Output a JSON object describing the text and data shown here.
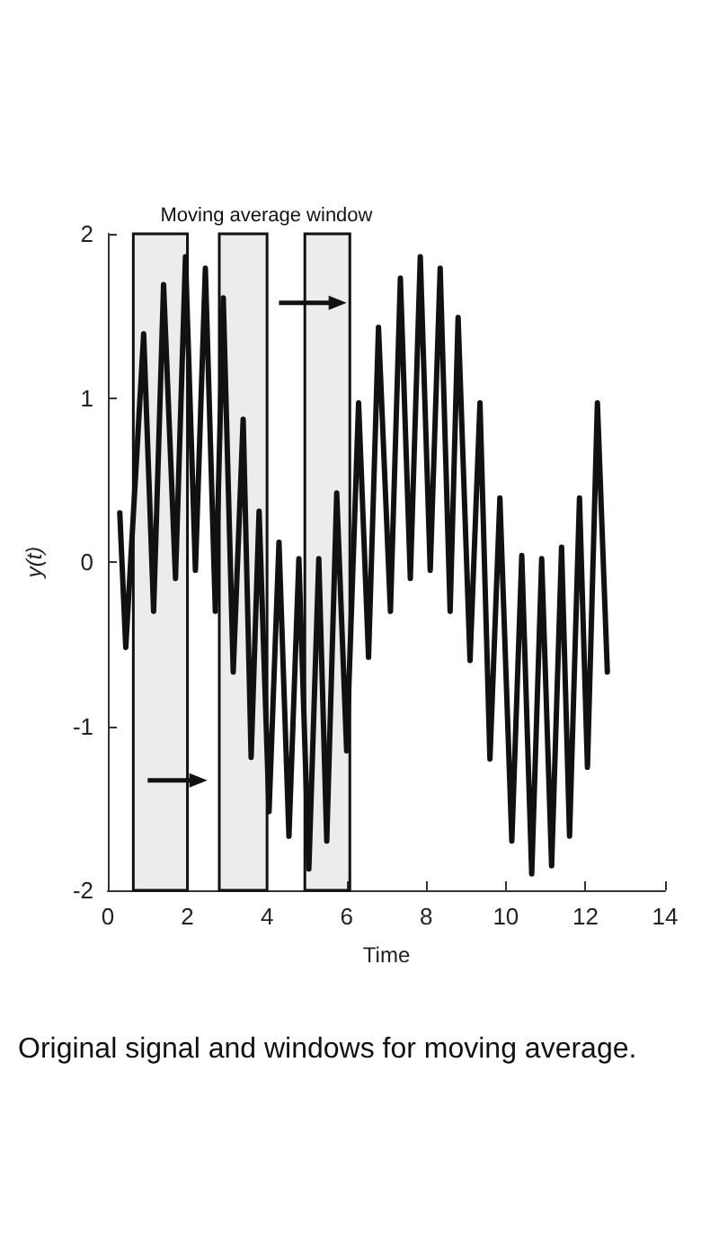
{
  "chart_data": {
    "type": "line",
    "xlabel": "Time",
    "ylabel": "y(t)",
    "x": [
      0.3,
      0.45,
      0.9,
      1.15,
      1.4,
      1.7,
      1.95,
      2.2,
      2.45,
      2.7,
      2.9,
      3.15,
      3.4,
      3.6,
      3.8,
      4.05,
      4.3,
      4.55,
      4.8,
      5.05,
      5.3,
      5.5,
      5.75,
      6.0,
      6.3,
      6.55,
      6.8,
      7.1,
      7.35,
      7.6,
      7.85,
      8.1,
      8.35,
      8.6,
      8.8,
      9.1,
      9.35,
      9.6,
      9.85,
      10.15,
      10.4,
      10.65,
      10.9,
      11.15,
      11.4,
      11.6,
      11.85,
      12.05,
      12.3,
      12.55
    ],
    "series": [
      {
        "color": "#111111",
        "values": [
          0.3,
          -0.52,
          1.39,
          -0.3,
          1.69,
          -0.1,
          1.86,
          -0.05,
          1.79,
          -0.3,
          1.61,
          -0.67,
          0.87,
          -1.19,
          0.31,
          -1.52,
          0.12,
          -1.67,
          0.02,
          -1.87,
          0.02,
          -1.7,
          0.42,
          -1.15,
          0.97,
          -0.58,
          1.43,
          -0.3,
          1.73,
          -0.1,
          1.86,
          -0.05,
          1.79,
          -0.3,
          1.49,
          -0.6,
          0.97,
          -1.2,
          0.39,
          -1.7,
          0.04,
          -1.9,
          0.02,
          -1.85,
          0.09,
          -1.67,
          0.39,
          -1.25,
          0.97,
          -0.67
        ]
      }
    ],
    "xlim": [
      0,
      14
    ],
    "xticks": [
      0,
      2,
      4,
      6,
      8,
      10,
      12,
      14
    ],
    "ylim": [
      -2,
      2
    ],
    "yticks": [
      -2,
      -1,
      0,
      1,
      2
    ],
    "grid": false,
    "marker": "none",
    "line_style": "solid",
    "bands": [
      {
        "axis": "x",
        "from": 0.64,
        "to": 2.0,
        "label": "Moving average window",
        "color": "#111111"
      },
      {
        "axis": "x",
        "from": 2.8,
        "to": 4.0,
        "color": "#111111"
      },
      {
        "axis": "x",
        "from": 4.95,
        "to": 6.08,
        "color": "#111111"
      }
    ],
    "annotations": [
      "Original signal and windows for moving average."
    ]
  }
}
